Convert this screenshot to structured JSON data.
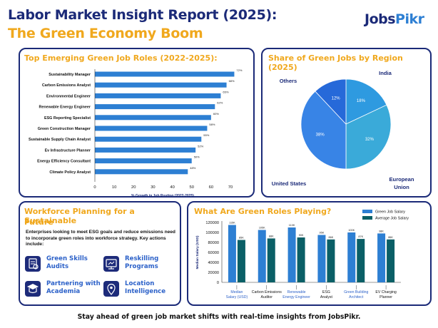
{
  "header": {
    "title_line1": "Labor Market Insight Report (2025):",
    "title_line2": "The Green Economy Boom",
    "logo_part1": "J",
    "logo_part2": "obs",
    "logo_part3": "Pikr"
  },
  "colors": {
    "navy": "#1b2a78",
    "orange": "#f0a81d",
    "bar_blue": "#2d7fd3",
    "average_teal": "#0a5f66"
  },
  "panels": {
    "roles_title": "Top Emerging Green Job Roles (2022-2025):",
    "region_title": "Share of Green Jobs by Region (2025)",
    "workforce_title_line1": "Workforce Planning for a Sustainable",
    "workforce_title_line2": "Future",
    "salary_title": "What Are Green Roles Playing?"
  },
  "workforce": {
    "intro": "Enterprises looking to meet ESG goals and reduce emissions need to incorporate green roles into workforce strategy. Key actions include:",
    "actions": [
      {
        "line1": "Green Skills",
        "line2": "Audits",
        "icon": "audit-icon"
      },
      {
        "line1": "Reskilling",
        "line2": "Programs",
        "icon": "training-screen-icon"
      },
      {
        "line1": "Partnering with",
        "line2": "Academia",
        "icon": "academia-icon"
      },
      {
        "line1": "Location",
        "line2": "Intelligence",
        "icon": "location-pin-icon"
      }
    ]
  },
  "footer": {
    "text": "Stay ahead of green job market shifts with real-time insights from JobsPikr."
  },
  "chart_data": [
    {
      "type": "bar",
      "orientation": "horizontal",
      "title": "Top Emerging Green Job Roles (2022-2025):",
      "xlabel": "% Growth in Job Posting (2022-2025)",
      "xlim": [
        0,
        70
      ],
      "xticks": [
        0,
        10,
        20,
        30,
        40,
        50,
        60,
        70
      ],
      "grid": false,
      "categories": [
        "Sustainability Manager",
        "Carbon Emissions Analyst",
        "Environmental Engineer",
        "Renewable Energy Engineer",
        "ESG Reporting Specialist",
        "Green Construction Manager",
        "Sustainable Supply Chain Analyst",
        "Ev Infrastructure Planner",
        "Energy Efficiency Consultant",
        "Climate Policy Analyst"
      ],
      "values": [
        72,
        68,
        65,
        62,
        60,
        58,
        55,
        52,
        50,
        48
      ],
      "value_labels": [
        "72%",
        "68%",
        "65%",
        "62%",
        "60%",
        "58%",
        "55%",
        "52%",
        "50%",
        "48%"
      ],
      "tick_labels": [
        "0",
        "10",
        "20",
        "30",
        "40",
        "50",
        "60",
        "70"
      ]
    },
    {
      "type": "pie",
      "title": "Share of Green Jobs by Region (2025)",
      "categories": [
        "India",
        "European Union",
        "United States",
        "Others"
      ],
      "values": [
        18,
        32,
        38,
        12
      ],
      "value_labels": [
        "18%",
        "32%",
        "38%",
        "12%"
      ],
      "colors": [
        "#2e9ae0",
        "#3aaad9",
        "#3884e6",
        "#2669d9"
      ],
      "outer_labels": {
        "india": "India",
        "eu_line1": "European",
        "eu_line2": "Union",
        "us": "United States",
        "others": "Others"
      }
    },
    {
      "type": "bar",
      "title": "What Are Green Roles Playing?",
      "ylabel": "Median Salary (USD)",
      "ylim": [
        0,
        120000
      ],
      "yticks": [
        0,
        20000,
        40000,
        60000,
        80000,
        100000,
        120000
      ],
      "ytick_labels": [
        "0",
        "20000",
        "40000",
        "60000",
        "80000",
        "100000",
        "120000"
      ],
      "legend_position": "top-right",
      "categories": [
        "Median Salary (USD)",
        "Carbon Emissions Auditor",
        "Renewable Energy Engineer",
        "ESG Analyst",
        "Green Building Architect",
        "EV Charging Planner"
      ],
      "category_lines": [
        [
          "Median",
          "Salary (USD)"
        ],
        [
          "Carbon Emissions",
          "Auditor"
        ],
        [
          "Renewable",
          "Energy Engineer"
        ],
        [
          "ESG",
          "Analyst"
        ],
        [
          "Green Building",
          "Architect"
        ],
        [
          "EV Charging",
          "Planner"
        ]
      ],
      "series": [
        {
          "name": "Green Job Salary",
          "values": [
            115000,
            105000,
            110000,
            95000,
            100000,
            98000
          ],
          "labels": [
            "115K",
            "105K",
            "110K",
            "95K",
            "100K",
            "98K"
          ],
          "color": "#2d7fd3"
        },
        {
          "name": "Average Job Salary",
          "values": [
            85000,
            88000,
            90000,
            86000,
            87000,
            86000
          ],
          "labels": [
            "85K",
            "88K",
            "90K",
            "86K",
            "87K",
            "86K"
          ],
          "color": "#0a5f66"
        }
      ]
    }
  ]
}
